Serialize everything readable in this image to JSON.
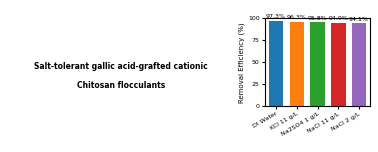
{
  "chart_data": {
    "type": "bar",
    "categories": [
      "DI Water",
      "KCl 11 g/L",
      "Na2SO4 1 g/L",
      "NaCl 11 g/L",
      "NaCl 2 g/L"
    ],
    "values": [
      97.3,
      96.3,
      95.8,
      94.9,
      94.1
    ],
    "value_labels": [
      "97.3%",
      "96.3%",
      "95.8%",
      "94.9%",
      "94.1%"
    ],
    "data_labels": true,
    "y_label": "Removal Efficiency (%)",
    "ylim": [
      0,
      100
    ],
    "yticks": [
      0,
      25,
      50,
      75,
      100
    ],
    "grid": false,
    "annotations": [
      "Salt-tolerant gallic acid-grafted cationic",
      "Chitosan flocculants"
    ]
  }
}
